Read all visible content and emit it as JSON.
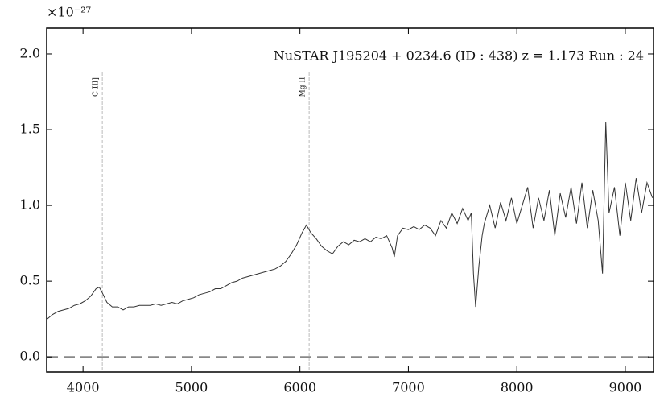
{
  "chart_data": {
    "type": "line",
    "exponent": "×10⁻²⁷",
    "annotation": "NuSTAR J195204 + 0234.6 (ID : 438)   z = 1.173   Run : 24",
    "xlim": [
      3665,
      9260
    ],
    "ylim": [
      -0.1,
      2.17
    ],
    "xticks": [
      4000,
      5000,
      6000,
      7000,
      8000,
      9000
    ],
    "yticks": [
      {
        "value": 0,
        "label": "0.0"
      },
      {
        "value": 0.5,
        "label": "0.5"
      },
      {
        "value": 1,
        "label": "1.0"
      },
      {
        "value": 1.5,
        "label": "1.5"
      },
      {
        "value": 2,
        "label": "2.0"
      }
    ],
    "hline": 0,
    "hline_color": "#888888",
    "lines": [
      {
        "label": "C III]",
        "x": 4178
      },
      {
        "label": "Mg II",
        "x": 6085
      }
    ],
    "lines_color": "#bbbbbb",
    "x": [
      3670,
      3720,
      3770,
      3820,
      3870,
      3920,
      3970,
      4020,
      4070,
      4120,
      4150,
      4180,
      4220,
      4270,
      4320,
      4370,
      4420,
      4470,
      4520,
      4570,
      4620,
      4670,
      4720,
      4770,
      4820,
      4870,
      4920,
      4970,
      5020,
      5070,
      5120,
      5170,
      5220,
      5270,
      5320,
      5370,
      5420,
      5470,
      5520,
      5570,
      5620,
      5670,
      5720,
      5770,
      5820,
      5870,
      5920,
      5970,
      6020,
      6060,
      6100,
      6150,
      6200,
      6250,
      6300,
      6350,
      6400,
      6450,
      6500,
      6550,
      6600,
      6650,
      6700,
      6750,
      6800,
      6850,
      6870,
      6900,
      6950,
      7000,
      7050,
      7100,
      7150,
      7200,
      7250,
      7300,
      7350,
      7400,
      7450,
      7500,
      7550,
      7580,
      7600,
      7620,
      7650,
      7680,
      7700,
      7750,
      7800,
      7850,
      7900,
      7950,
      8000,
      8050,
      8100,
      8150,
      8200,
      8250,
      8300,
      8350,
      8400,
      8450,
      8500,
      8550,
      8600,
      8650,
      8700,
      8750,
      8790,
      8820,
      8850,
      8900,
      8950,
      9000,
      9050,
      9100,
      9150,
      9200,
      9250
    ],
    "series": [
      {
        "color": "#333333",
        "values": [
          0.25,
          0.28,
          0.3,
          0.31,
          0.32,
          0.34,
          0.35,
          0.37,
          0.4,
          0.45,
          0.46,
          0.42,
          0.36,
          0.33,
          0.33,
          0.31,
          0.33,
          0.33,
          0.34,
          0.34,
          0.34,
          0.35,
          0.34,
          0.35,
          0.36,
          0.35,
          0.37,
          0.38,
          0.39,
          0.41,
          0.42,
          0.43,
          0.45,
          0.45,
          0.47,
          0.49,
          0.5,
          0.52,
          0.53,
          0.54,
          0.55,
          0.56,
          0.57,
          0.58,
          0.6,
          0.63,
          0.68,
          0.74,
          0.82,
          0.87,
          0.82,
          0.78,
          0.73,
          0.7,
          0.68,
          0.73,
          0.76,
          0.74,
          0.77,
          0.76,
          0.78,
          0.76,
          0.79,
          0.78,
          0.8,
          0.72,
          0.66,
          0.8,
          0.85,
          0.84,
          0.86,
          0.84,
          0.87,
          0.85,
          0.8,
          0.9,
          0.85,
          0.95,
          0.88,
          0.98,
          0.9,
          0.95,
          0.55,
          0.33,
          0.6,
          0.8,
          0.88,
          1.0,
          0.85,
          1.02,
          0.9,
          1.05,
          0.88,
          1.0,
          1.12,
          0.85,
          1.05,
          0.9,
          1.1,
          0.8,
          1.08,
          0.92,
          1.12,
          0.88,
          1.15,
          0.85,
          1.1,
          0.9,
          0.55,
          1.55,
          0.95,
          1.12,
          0.8,
          1.15,
          0.9,
          1.18,
          0.95,
          1.15,
          1.05
        ]
      }
    ]
  }
}
